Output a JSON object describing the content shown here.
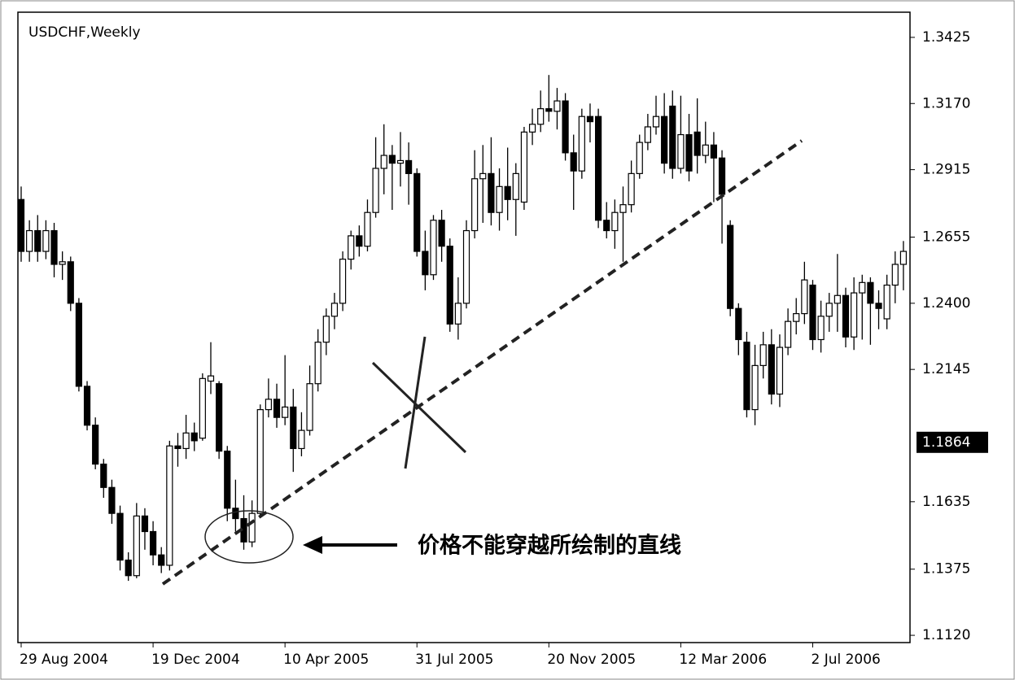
{
  "chart_data": {
    "type": "candlestick",
    "title": "USDCHF,Weekly",
    "annotation": "价格不能穿越所绘制的直线",
    "price_marker": 1.1864,
    "up_color": "#ffffff",
    "down_color": "#000000",
    "grid": false,
    "ylim": [
      1.1092,
      1.3522
    ],
    "yticks": [
      1.3425,
      {
        "value": 1.317,
        "label": "1.3170"
      },
      1.2915,
      1.2655,
      {
        "value": 1.24,
        "label": "1.2400"
      },
      1.2145,
      1.1635,
      1.1375,
      {
        "value": 1.112,
        "label": "1.1120"
      }
    ],
    "categories": [
      "29 Aug 2004",
      null,
      null,
      null,
      null,
      null,
      null,
      null,
      null,
      null,
      null,
      null,
      null,
      null,
      null,
      null,
      "19 Dec 2004",
      null,
      null,
      null,
      null,
      null,
      null,
      null,
      null,
      null,
      null,
      null,
      null,
      null,
      null,
      null,
      "10 Apr 2005",
      null,
      null,
      null,
      null,
      null,
      null,
      null,
      null,
      null,
      null,
      null,
      null,
      null,
      null,
      null,
      "31 Jul 2005",
      null,
      null,
      null,
      null,
      null,
      null,
      null,
      null,
      null,
      null,
      null,
      null,
      null,
      null,
      null,
      "20 Nov 2005",
      null,
      null,
      null,
      null,
      null,
      null,
      null,
      null,
      null,
      null,
      null,
      null,
      null,
      null,
      null,
      "12 Mar 2006",
      null,
      null,
      null,
      null,
      null,
      null,
      null,
      null,
      null,
      null,
      null,
      null,
      null,
      null,
      null,
      "2 Jul 2006",
      null,
      null,
      null,
      null,
      null,
      null,
      null,
      null,
      null,
      null,
      null
    ],
    "open": [
      1.28,
      1.26,
      1.268,
      1.26,
      1.268,
      1.255,
      1.256,
      1.24,
      1.208,
      1.193,
      1.178,
      1.169,
      1.159,
      1.141,
      1.135,
      1.158,
      1.152,
      1.143,
      1.139,
      1.185,
      1.184,
      1.19,
      1.188,
      1.21,
      1.209,
      1.183,
      1.161,
      1.157,
      1.148,
      1.159,
      1.199,
      1.203,
      1.196,
      1.2,
      1.184,
      1.191,
      1.209,
      1.225,
      1.235,
      1.24,
      1.257,
      1.266,
      1.262,
      1.275,
      1.292,
      1.297,
      1.294,
      1.295,
      1.29,
      1.26,
      1.251,
      1.272,
      1.262,
      1.232,
      1.24,
      1.268,
      1.288,
      1.29,
      1.275,
      1.285,
      1.28,
      1.279,
      1.306,
      1.309,
      1.315,
      1.314,
      1.318,
      1.298,
      1.291,
      1.312,
      1.312,
      1.272,
      1.268,
      1.275,
      1.278,
      1.29,
      1.302,
      1.308,
      1.312,
      1.316,
      1.292,
      1.305,
      1.306,
      1.297,
      1.301,
      1.296,
      1.27,
      1.238,
      1.225,
      1.199,
      1.216,
      1.224,
      1.205,
      1.223,
      1.233,
      1.236,
      1.247,
      1.226,
      1.235,
      1.24,
      1.243,
      1.227,
      1.244,
      1.248,
      1.24,
      1.234,
      1.247,
      1.255
    ],
    "high": [
      1.285,
      1.272,
      1.274,
      1.272,
      1.271,
      1.26,
      1.258,
      1.242,
      1.21,
      1.196,
      1.18,
      1.172,
      1.162,
      1.144,
      1.163,
      1.161,
      1.156,
      1.146,
      1.187,
      1.19,
      1.197,
      1.194,
      1.213,
      1.225,
      1.21,
      1.185,
      1.172,
      1.166,
      1.164,
      1.201,
      1.211,
      1.209,
      1.22,
      1.207,
      1.198,
      1.216,
      1.23,
      1.238,
      1.244,
      1.26,
      1.268,
      1.27,
      1.28,
      1.304,
      1.309,
      1.301,
      1.306,
      1.302,
      1.292,
      1.268,
      1.274,
      1.276,
      1.265,
      1.25,
      1.272,
      1.299,
      1.301,
      1.304,
      1.292,
      1.3,
      1.294,
      1.308,
      1.315,
      1.322,
      1.328,
      1.323,
      1.321,
      1.305,
      1.315,
      1.317,
      1.315,
      1.279,
      1.28,
      1.285,
      1.295,
      1.305,
      1.313,
      1.32,
      1.321,
      1.322,
      1.32,
      1.313,
      1.319,
      1.31,
      1.306,
      1.299,
      1.272,
      1.24,
      1.229,
      1.224,
      1.229,
      1.23,
      1.228,
      1.238,
      1.242,
      1.256,
      1.249,
      1.241,
      1.244,
      1.259,
      1.246,
      1.25,
      1.251,
      1.25,
      1.245,
      1.251,
      1.26,
      1.264
    ],
    "low": [
      1.256,
      1.256,
      1.256,
      1.257,
      1.25,
      1.249,
      1.237,
      1.206,
      1.191,
      1.176,
      1.165,
      1.155,
      1.137,
      1.133,
      1.134,
      1.145,
      1.139,
      1.136,
      1.137,
      1.177,
      1.18,
      1.183,
      1.187,
      1.205,
      1.18,
      1.156,
      1.152,
      1.145,
      1.146,
      1.158,
      1.196,
      1.192,
      1.193,
      1.175,
      1.181,
      1.189,
      1.206,
      1.22,
      1.23,
      1.237,
      1.253,
      1.258,
      1.26,
      1.273,
      1.282,
      1.276,
      1.285,
      1.278,
      1.258,
      1.245,
      1.249,
      1.256,
      1.229,
      1.226,
      1.238,
      1.265,
      1.271,
      1.27,
      1.268,
      1.272,
      1.266,
      1.276,
      1.301,
      1.306,
      1.31,
      1.307,
      1.295,
      1.276,
      1.288,
      1.302,
      1.269,
      1.265,
      1.261,
      1.256,
      1.275,
      1.288,
      1.299,
      1.305,
      1.29,
      1.288,
      1.29,
      1.287,
      1.29,
      1.294,
      1.279,
      1.263,
      1.235,
      1.22,
      1.196,
      1.193,
      1.211,
      1.201,
      1.2,
      1.22,
      1.228,
      1.232,
      1.222,
      1.221,
      1.229,
      1.229,
      1.223,
      1.222,
      1.226,
      1.224,
      1.23,
      1.23,
      1.24,
      1.245
    ],
    "close": [
      1.26,
      1.268,
      1.26,
      1.268,
      1.255,
      1.256,
      1.24,
      1.208,
      1.193,
      1.178,
      1.169,
      1.159,
      1.141,
      1.135,
      1.158,
      1.152,
      1.143,
      1.139,
      1.185,
      1.184,
      1.19,
      1.187,
      1.211,
      1.212,
      1.183,
      1.161,
      1.157,
      1.148,
      1.159,
      1.199,
      1.203,
      1.196,
      1.2,
      1.184,
      1.191,
      1.209,
      1.225,
      1.235,
      1.24,
      1.257,
      1.266,
      1.262,
      1.275,
      1.292,
      1.297,
      1.294,
      1.295,
      1.29,
      1.26,
      1.251,
      1.272,
      1.262,
      1.232,
      1.24,
      1.268,
      1.288,
      1.29,
      1.275,
      1.285,
      1.28,
      1.29,
      1.306,
      1.309,
      1.315,
      1.314,
      1.318,
      1.298,
      1.291,
      1.312,
      1.31,
      1.272,
      1.268,
      1.275,
      1.278,
      1.29,
      1.302,
      1.308,
      1.312,
      1.294,
      1.292,
      1.305,
      1.291,
      1.297,
      1.301,
      1.296,
      1.282,
      1.238,
      1.226,
      1.199,
      1.216,
      1.224,
      1.205,
      1.223,
      1.233,
      1.236,
      1.249,
      1.226,
      1.235,
      1.24,
      1.243,
      1.227,
      1.244,
      1.248,
      1.24,
      1.238,
      1.247,
      1.255,
      1.26
    ]
  }
}
